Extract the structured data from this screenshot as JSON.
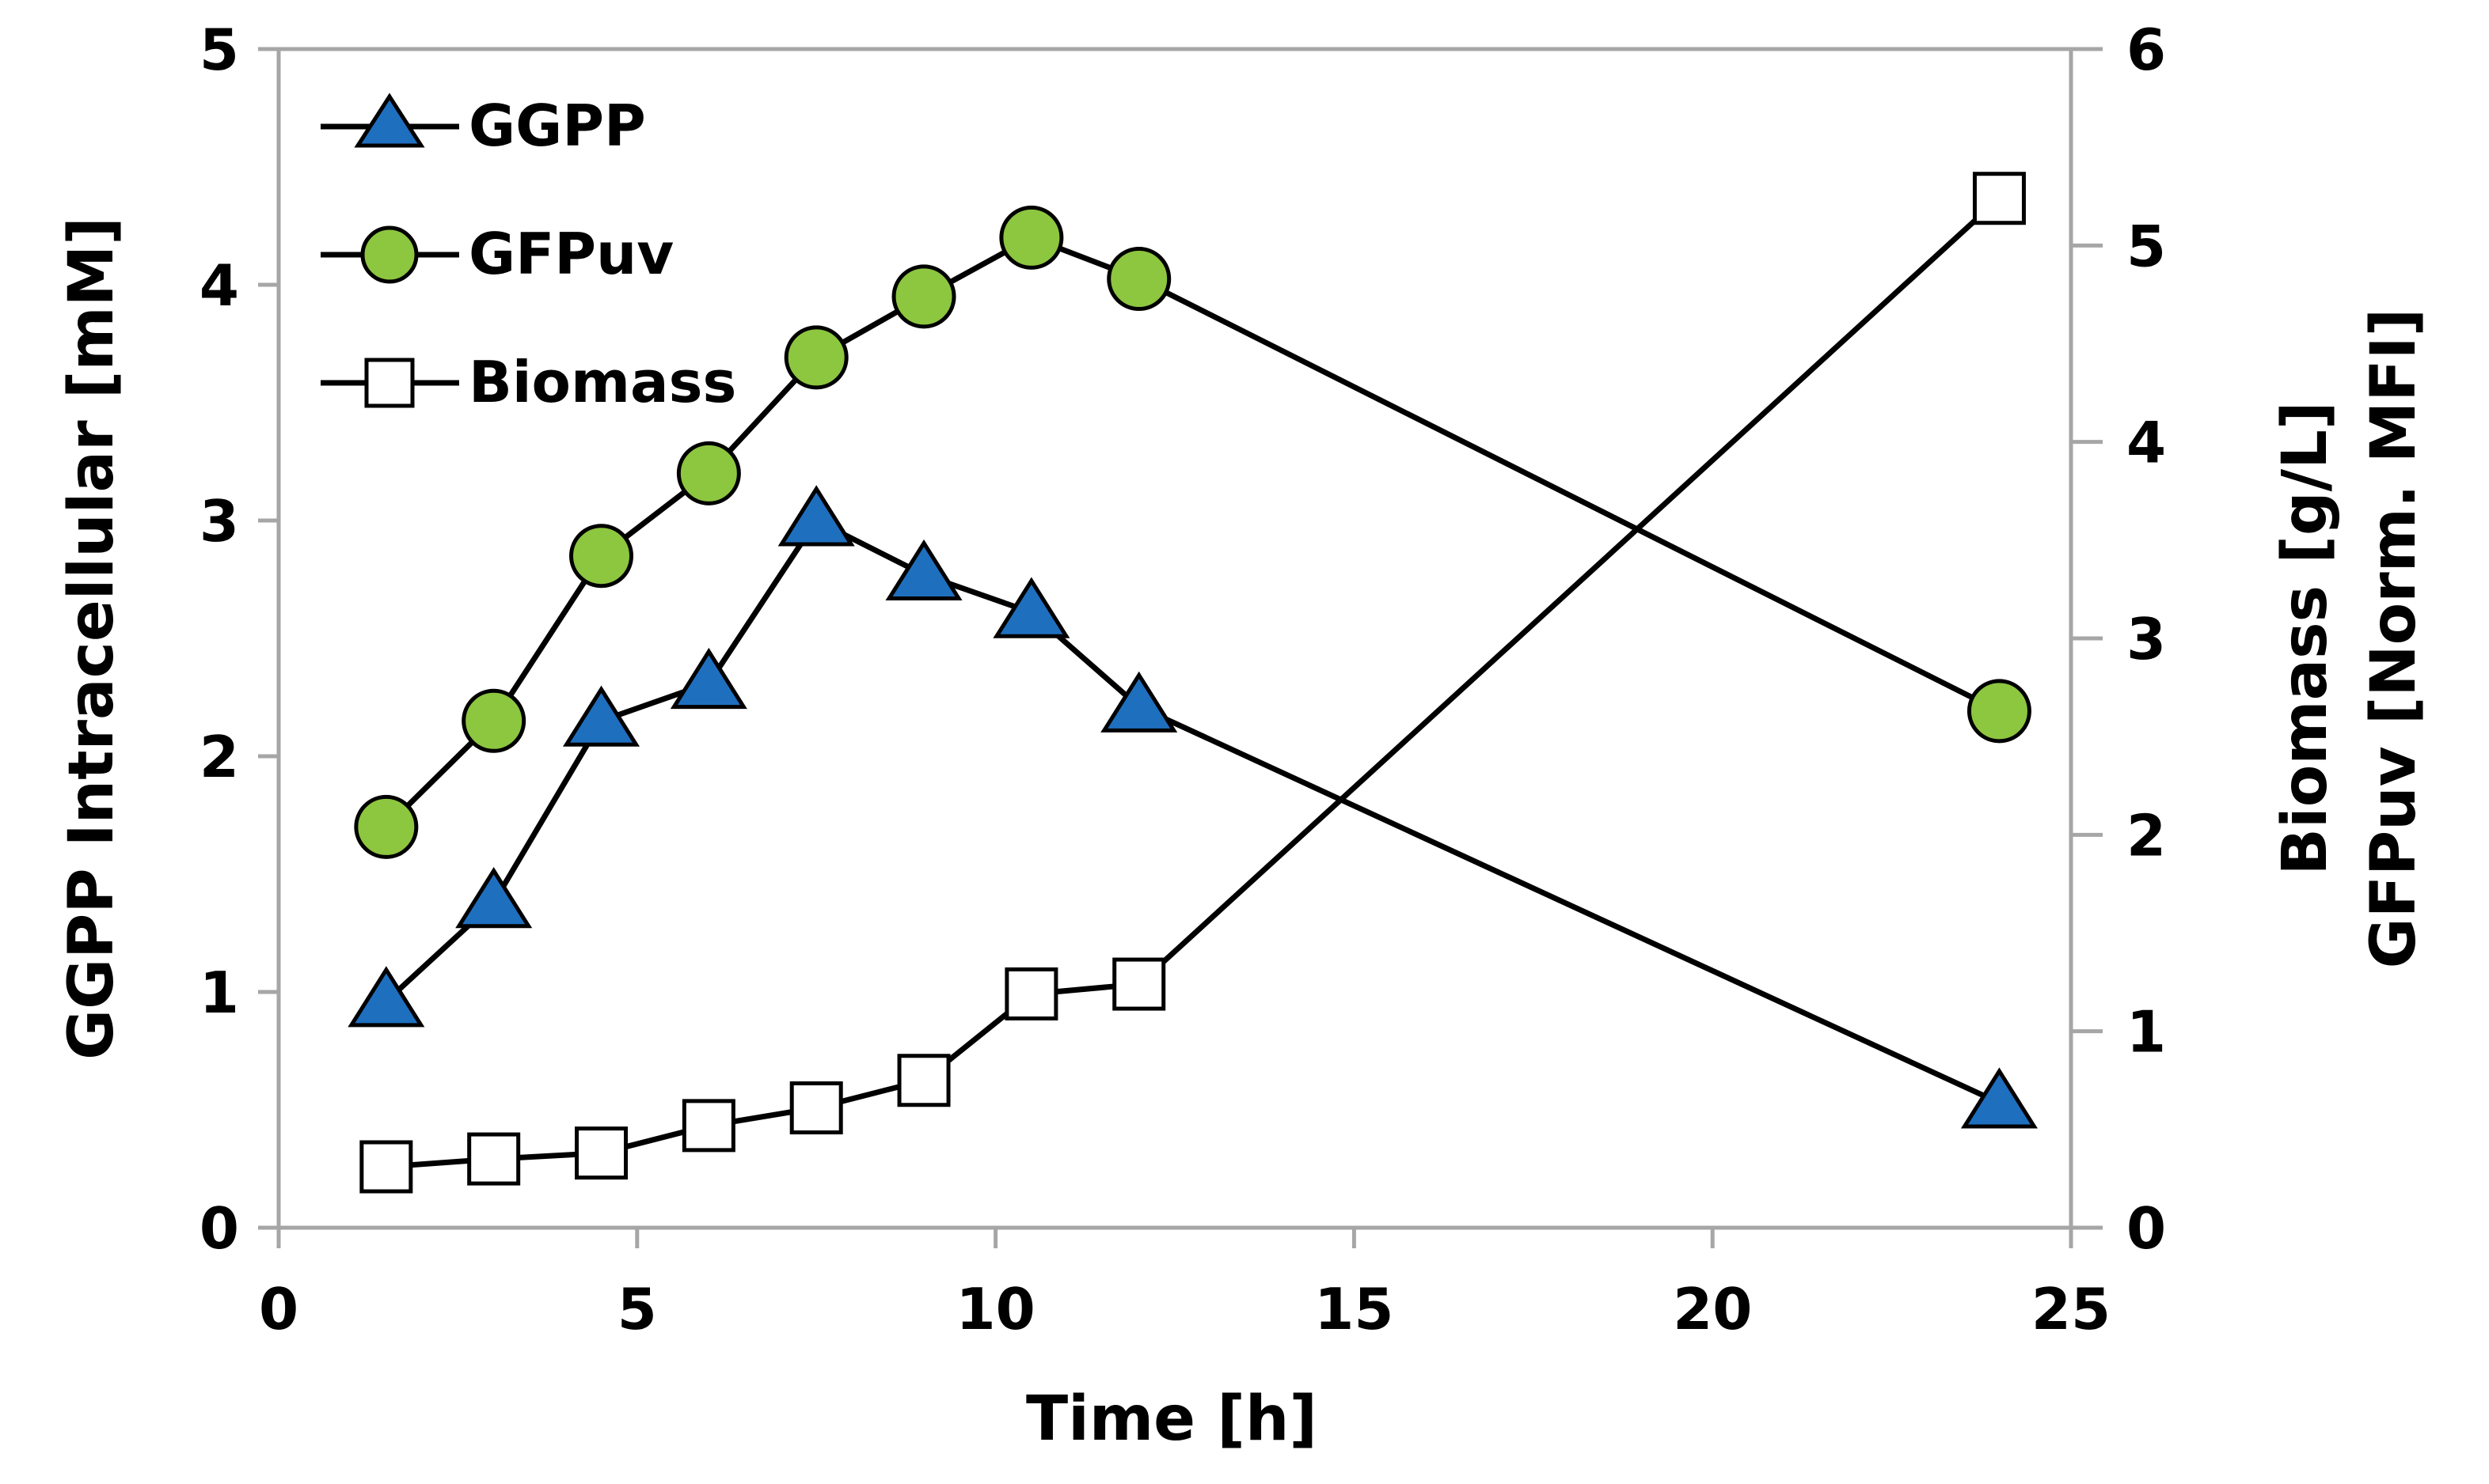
{
  "chart_data": {
    "type": "line",
    "xlabel": "Time [h]",
    "ylabel_left": "GGPP Intracellular [mM]",
    "ylabel_right_line1": "Biomass [g/L]",
    "ylabel_right_line2": "GFPuv [Norm. MFI]",
    "xlim": [
      0,
      25
    ],
    "ylim_left": [
      0,
      5
    ],
    "ylim_right": [
      0,
      6
    ],
    "x_ticks": [
      0,
      5,
      10,
      15,
      20,
      25
    ],
    "y_left_ticks": [
      0,
      1,
      2,
      3,
      4,
      5
    ],
    "y_right_ticks": [
      0,
      1,
      2,
      3,
      4,
      5,
      6
    ],
    "legend_position": "top-left",
    "grid": false,
    "series": [
      {
        "name": "GGPP",
        "axis": "left",
        "marker": "triangle",
        "color": "#1f6fbf",
        "x": [
          1.5,
          3,
          4.5,
          6,
          7.5,
          9,
          10.5,
          12,
          24
        ],
        "values": [
          0.96,
          1.38,
          2.15,
          2.31,
          3.0,
          2.77,
          2.61,
          2.21,
          0.53
        ]
      },
      {
        "name": "GFPuv",
        "axis": "right",
        "marker": "circle",
        "color": "#8dc63f",
        "x": [
          1.5,
          3,
          4.5,
          6,
          7.5,
          9,
          10.5,
          12,
          24
        ],
        "values": [
          2.04,
          2.58,
          3.42,
          3.84,
          4.43,
          4.74,
          5.04,
          4.83,
          2.63
        ]
      },
      {
        "name": "Biomass",
        "axis": "right",
        "marker": "square",
        "color": "#ffffff",
        "x": [
          1.5,
          3,
          4.5,
          6,
          7.5,
          9,
          10.5,
          12,
          24
        ],
        "values": [
          0.31,
          0.35,
          0.38,
          0.52,
          0.61,
          0.75,
          1.19,
          1.24,
          5.24
        ]
      }
    ]
  }
}
